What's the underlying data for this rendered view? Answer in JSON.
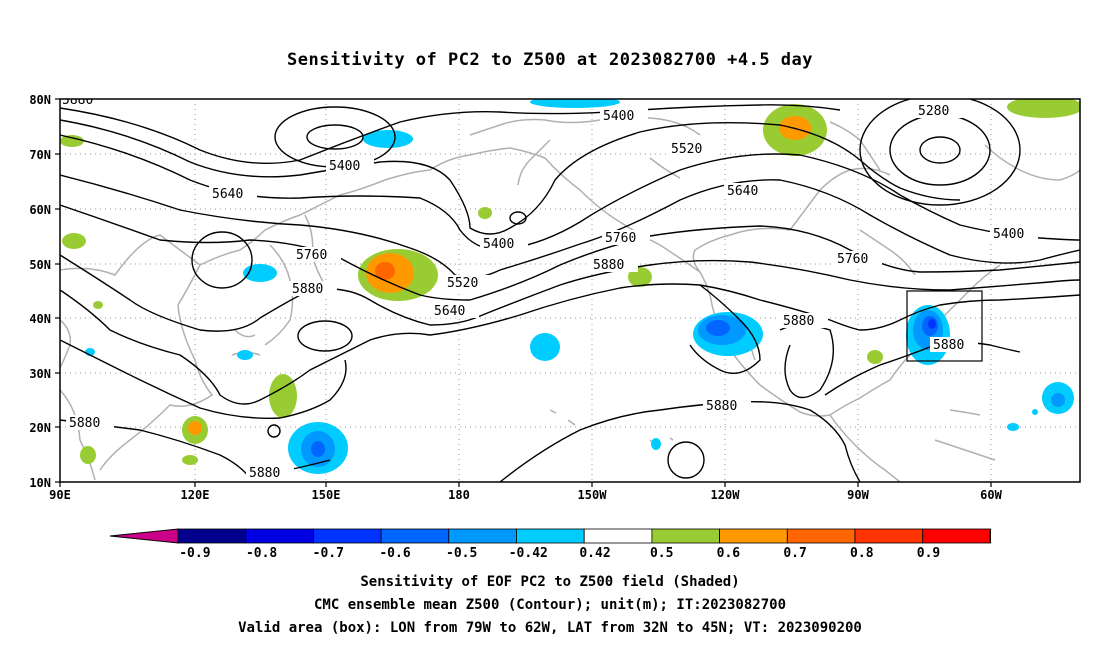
{
  "title": "Sensitivity of PC2 to Z500 at 2023082700 +4.5 day",
  "lat_labels": [
    "80N",
    "70N",
    "60N",
    "50N",
    "40N",
    "30N",
    "20N",
    "10N"
  ],
  "lon_labels": [
    "90E",
    "120E",
    "150E",
    "180",
    "150W",
    "120W",
    "90W",
    "60W"
  ],
  "contour_labels": [
    "5280",
    "5400",
    "5400",
    "5400",
    "5400",
    "5520",
    "5520",
    "5640",
    "5640",
    "5640",
    "5760",
    "5760",
    "5760",
    "5880",
    "5880",
    "5880",
    "5880",
    "5880",
    "5880",
    "5880",
    "5880"
  ],
  "colorbar": {
    "labels": [
      "-0.9",
      "-0.8",
      "-0.7",
      "-0.6",
      "-0.5",
      "-0.42",
      "0.42",
      "0.5",
      "0.6",
      "0.7",
      "0.8",
      "0.9"
    ],
    "low_end_color": "#cc0088",
    "high_end_color": "#f5a6c8",
    "colors": [
      "#00008b",
      "#0000e0",
      "#0033ff",
      "#0066ff",
      "#0099ff",
      "#00ccff",
      "#ffffff",
      "#99cc33",
      "#ff9900",
      "#ff6600",
      "#ff3300",
      "#ff0000"
    ]
  },
  "captions": [
    "Sensitivity of EOF PC2 to Z500 field (Shaded)",
    "CMC ensemble mean Z500 (Contour); unit(m); IT:2023082700",
    "Valid area (box): LON from 79W to 62W, LAT from 32N to 45N; VT: 2023090200"
  ]
}
